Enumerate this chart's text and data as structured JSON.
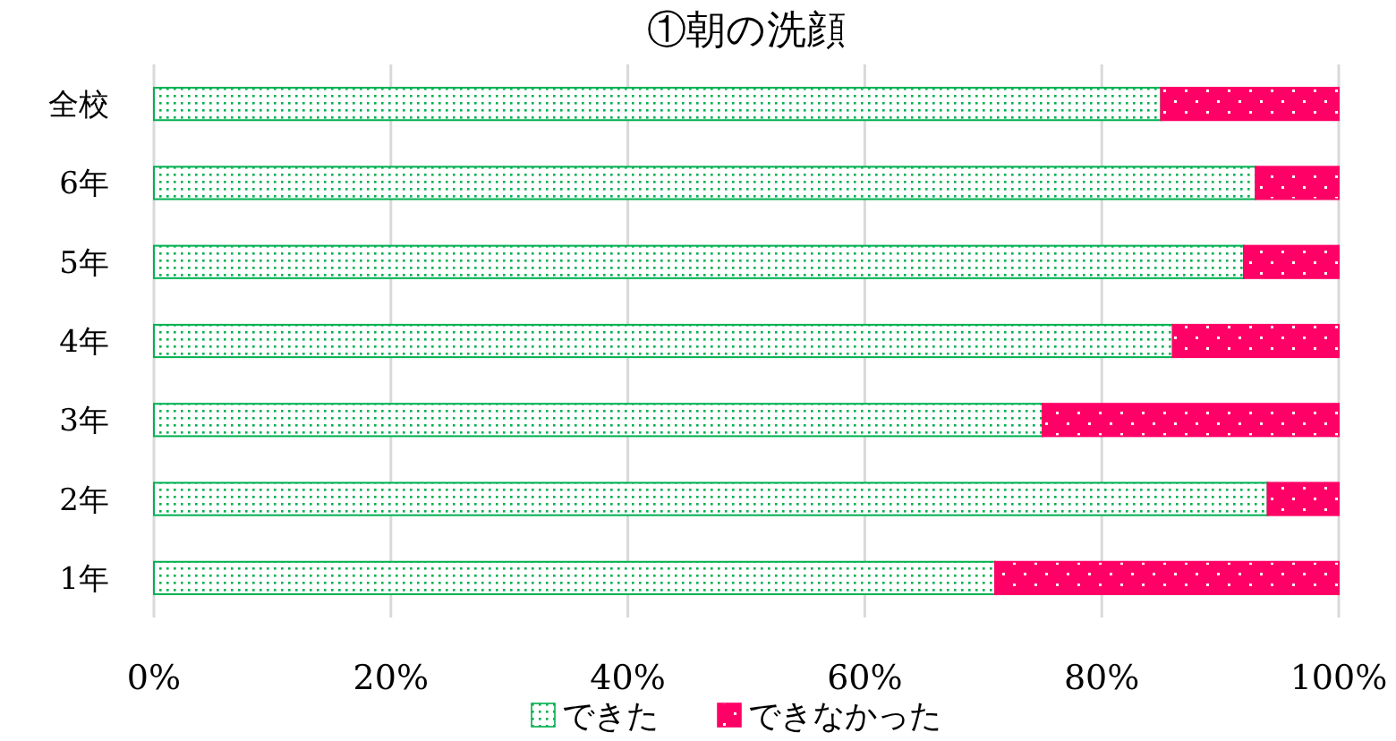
{
  "chart_data": {
    "type": "bar",
    "orientation": "horizontal",
    "stacked": true,
    "title": "①朝の洗顔",
    "categories": [
      "全校",
      "6年",
      "5年",
      "4年",
      "3年",
      "2年",
      "1年"
    ],
    "series": [
      {
        "name": "できた",
        "color": "#00b050",
        "values": [
          85,
          93,
          92,
          86,
          75,
          94,
          71
        ]
      },
      {
        "name": "できなかった",
        "color": "#ff0066",
        "values": [
          15,
          7,
          8,
          14,
          25,
          6,
          29
        ]
      }
    ],
    "xlim": [
      0,
      100
    ],
    "xticks": [
      {
        "value": 0,
        "label": "0%"
      },
      {
        "value": 20,
        "label": "20%"
      },
      {
        "value": 40,
        "label": "40%"
      },
      {
        "value": 60,
        "label": "60%"
      },
      {
        "value": 80,
        "label": "80%"
      },
      {
        "value": 100,
        "label": "100%"
      }
    ],
    "grid": "x",
    "legend": "bottom"
  }
}
